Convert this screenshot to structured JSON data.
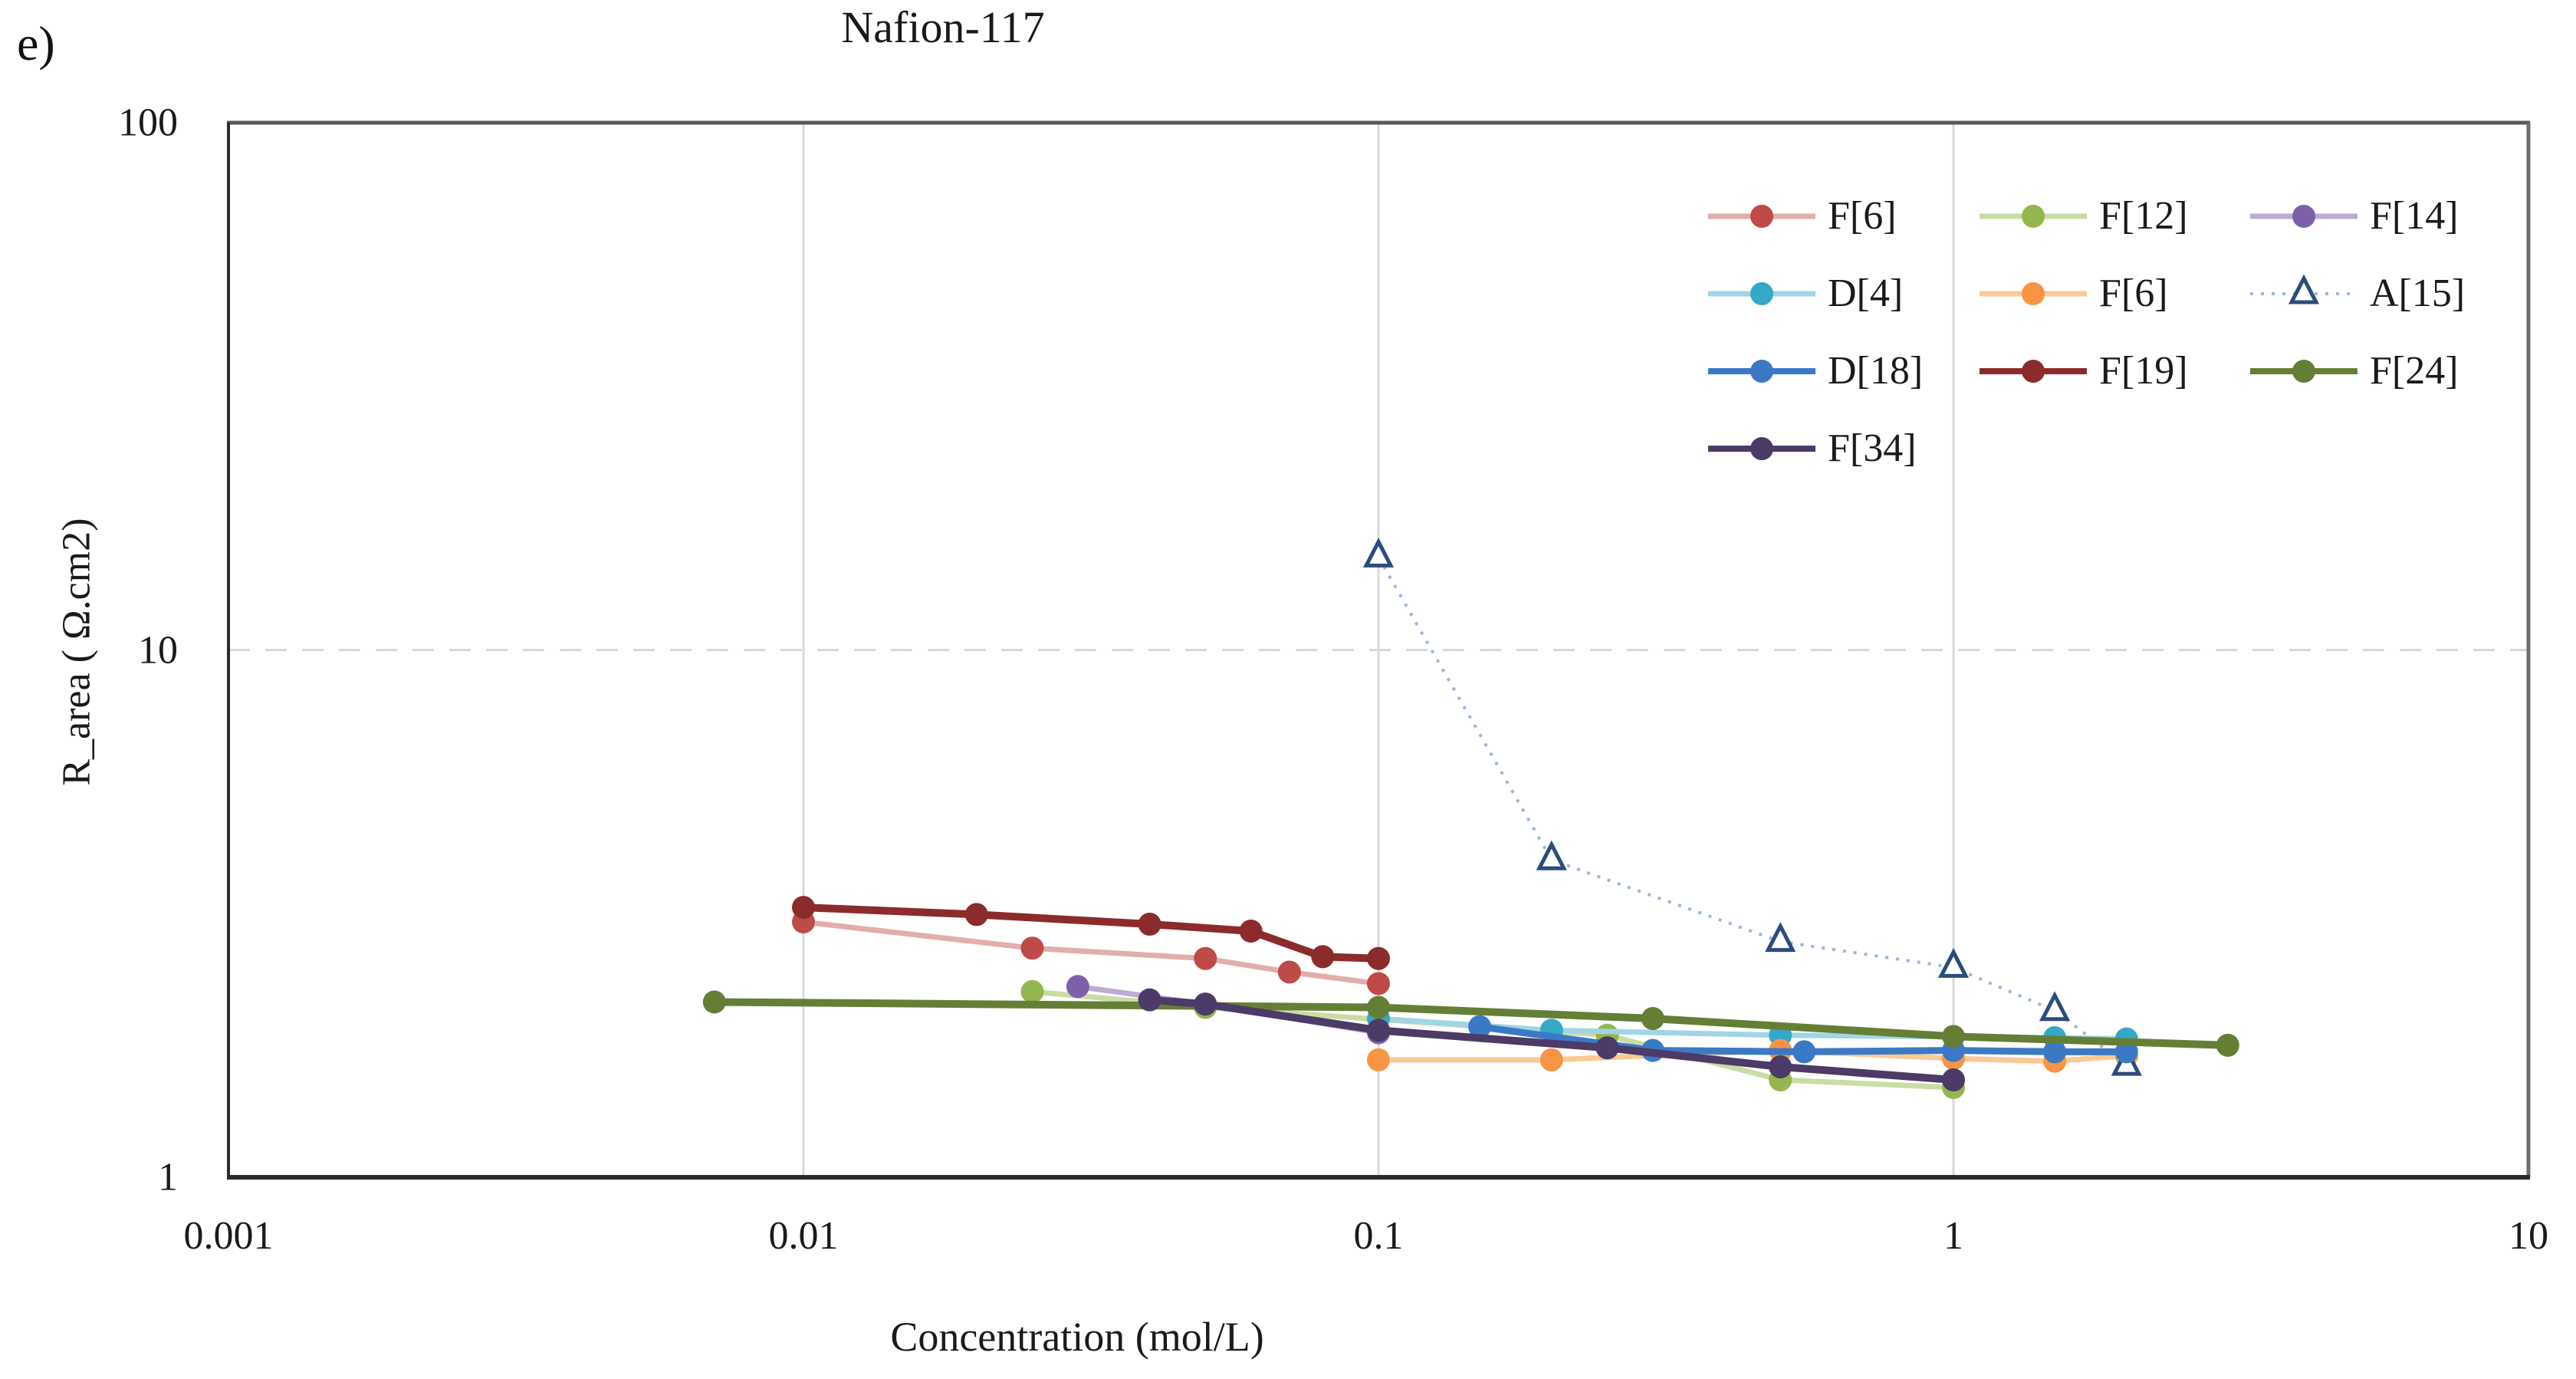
{
  "figure": {
    "panel_label": "e)"
  },
  "chart_data": {
    "type": "line",
    "title": "Nafion-117",
    "xlabel": "Concentration (mol/L)",
    "ylabel": "R_area ( Ω.cm2)",
    "x_scale": "log",
    "y_scale": "log",
    "xlim": [
      0.001,
      10
    ],
    "ylim": [
      1,
      100
    ],
    "x_ticks": [
      {
        "value": 0.001,
        "label": "0.001"
      },
      {
        "value": 0.01,
        "label": "0.01"
      },
      {
        "value": 0.1,
        "label": "0.1"
      },
      {
        "value": 1,
        "label": "1"
      },
      {
        "value": 10,
        "label": "10"
      }
    ],
    "y_ticks": [
      {
        "value": 1,
        "label": "1"
      },
      {
        "value": 10,
        "label": "10"
      },
      {
        "value": 100,
        "label": "100"
      }
    ],
    "grid": {
      "vertical_at": [
        0.01,
        0.1,
        1
      ],
      "horizontal_dashed_at": [
        10
      ]
    },
    "legend_position": "top-right-inside",
    "colors": {
      "gridline": "#d9d9d9",
      "axis": "#2b2b2b",
      "border_top": "#595959",
      "border_right": "#6e6e6e",
      "text": "#1a1a1a"
    },
    "series": [
      {
        "name": "F[6]",
        "style": {
          "marker": "circle",
          "color": "#be4b48",
          "line_color": "#e2adab",
          "line_width": 7,
          "line_dash": ""
        },
        "points": [
          [
            0.01,
            3.05
          ],
          [
            0.025,
            2.72
          ],
          [
            0.05,
            2.6
          ],
          [
            0.07,
            2.45
          ],
          [
            0.1,
            2.33
          ]
        ]
      },
      {
        "name": "F[12]",
        "style": {
          "marker": "circle",
          "color": "#94b64e",
          "line_color": "#c9dca4",
          "line_width": 7,
          "line_dash": ""
        },
        "points": [
          [
            0.025,
            2.25
          ],
          [
            0.05,
            2.1
          ],
          [
            0.25,
            1.86
          ],
          [
            0.5,
            1.53
          ],
          [
            1,
            1.48
          ]
        ]
      },
      {
        "name": "F[14]",
        "style": {
          "marker": "circle",
          "color": "#7c61a9",
          "line_color": "#bcacd4",
          "line_width": 7,
          "line_dash": ""
        },
        "points": [
          [
            0.03,
            2.3
          ],
          [
            0.05,
            2.13
          ],
          [
            0.1,
            1.88
          ]
        ]
      },
      {
        "name": "D[4]",
        "style": {
          "marker": "circle",
          "color": "#35a8c8",
          "line_color": "#9fd5e4",
          "line_width": 7,
          "line_dash": ""
        },
        "points": [
          [
            0.1,
            2.0
          ],
          [
            0.2,
            1.9
          ],
          [
            0.5,
            1.86
          ],
          [
            1.5,
            1.84
          ],
          [
            2,
            1.83
          ]
        ]
      },
      {
        "name": "F[6]",
        "style": {
          "marker": "circle",
          "color": "#f79545",
          "line_color": "#fbc995",
          "line_width": 7,
          "line_dash": ""
        },
        "points": [
          [
            0.1,
            1.67
          ],
          [
            0.2,
            1.67
          ],
          [
            0.5,
            1.74
          ],
          [
            1,
            1.68
          ],
          [
            1.5,
            1.66
          ],
          [
            2,
            1.7
          ]
        ]
      },
      {
        "name": "A[15]",
        "style": {
          "marker": "triangle-open",
          "color": "#2b4c7e",
          "line_color": "#9db7d8",
          "line_width": 4,
          "line_dash": "4 10"
        },
        "points": [
          [
            0.1,
            15
          ],
          [
            0.2,
            4
          ],
          [
            0.5,
            2.8
          ],
          [
            1,
            2.5
          ],
          [
            1.5,
            2.07
          ],
          [
            2,
            1.63
          ]
        ]
      },
      {
        "name": "D[18]",
        "style": {
          "marker": "circle",
          "color": "#3c79c5",
          "line_color": "#3c79c5",
          "line_width": 9,
          "line_dash": ""
        },
        "points": [
          [
            0.15,
            1.93
          ],
          [
            0.3,
            1.74
          ],
          [
            0.55,
            1.73
          ],
          [
            1,
            1.74
          ],
          [
            1.5,
            1.73
          ],
          [
            2,
            1.73
          ]
        ]
      },
      {
        "name": "F[19]",
        "style": {
          "marker": "circle",
          "color": "#8b2b2b",
          "line_color": "#8b2b2b",
          "line_width": 10,
          "line_dash": ""
        },
        "points": [
          [
            0.01,
            3.25
          ],
          [
            0.02,
            3.15
          ],
          [
            0.04,
            3.02
          ],
          [
            0.06,
            2.93
          ],
          [
            0.08,
            2.62
          ],
          [
            0.1,
            2.6
          ]
        ]
      },
      {
        "name": "F[24]",
        "style": {
          "marker": "circle",
          "color": "#647f35",
          "line_color": "#647f35",
          "line_width": 10,
          "line_dash": ""
        },
        "points": [
          [
            0.007,
            2.15
          ],
          [
            0.1,
            2.1
          ],
          [
            0.3,
            2.0
          ],
          [
            1,
            1.85
          ],
          [
            3,
            1.78
          ]
        ]
      },
      {
        "name": "F[34]",
        "style": {
          "marker": "circle",
          "color": "#4c3a67",
          "line_color": "#4c3a67",
          "line_width": 10,
          "line_dash": ""
        },
        "points": [
          [
            0.04,
            2.17
          ],
          [
            0.05,
            2.13
          ],
          [
            0.1,
            1.9
          ],
          [
            0.25,
            1.76
          ],
          [
            0.5,
            1.62
          ],
          [
            1,
            1.53
          ]
        ]
      }
    ]
  }
}
